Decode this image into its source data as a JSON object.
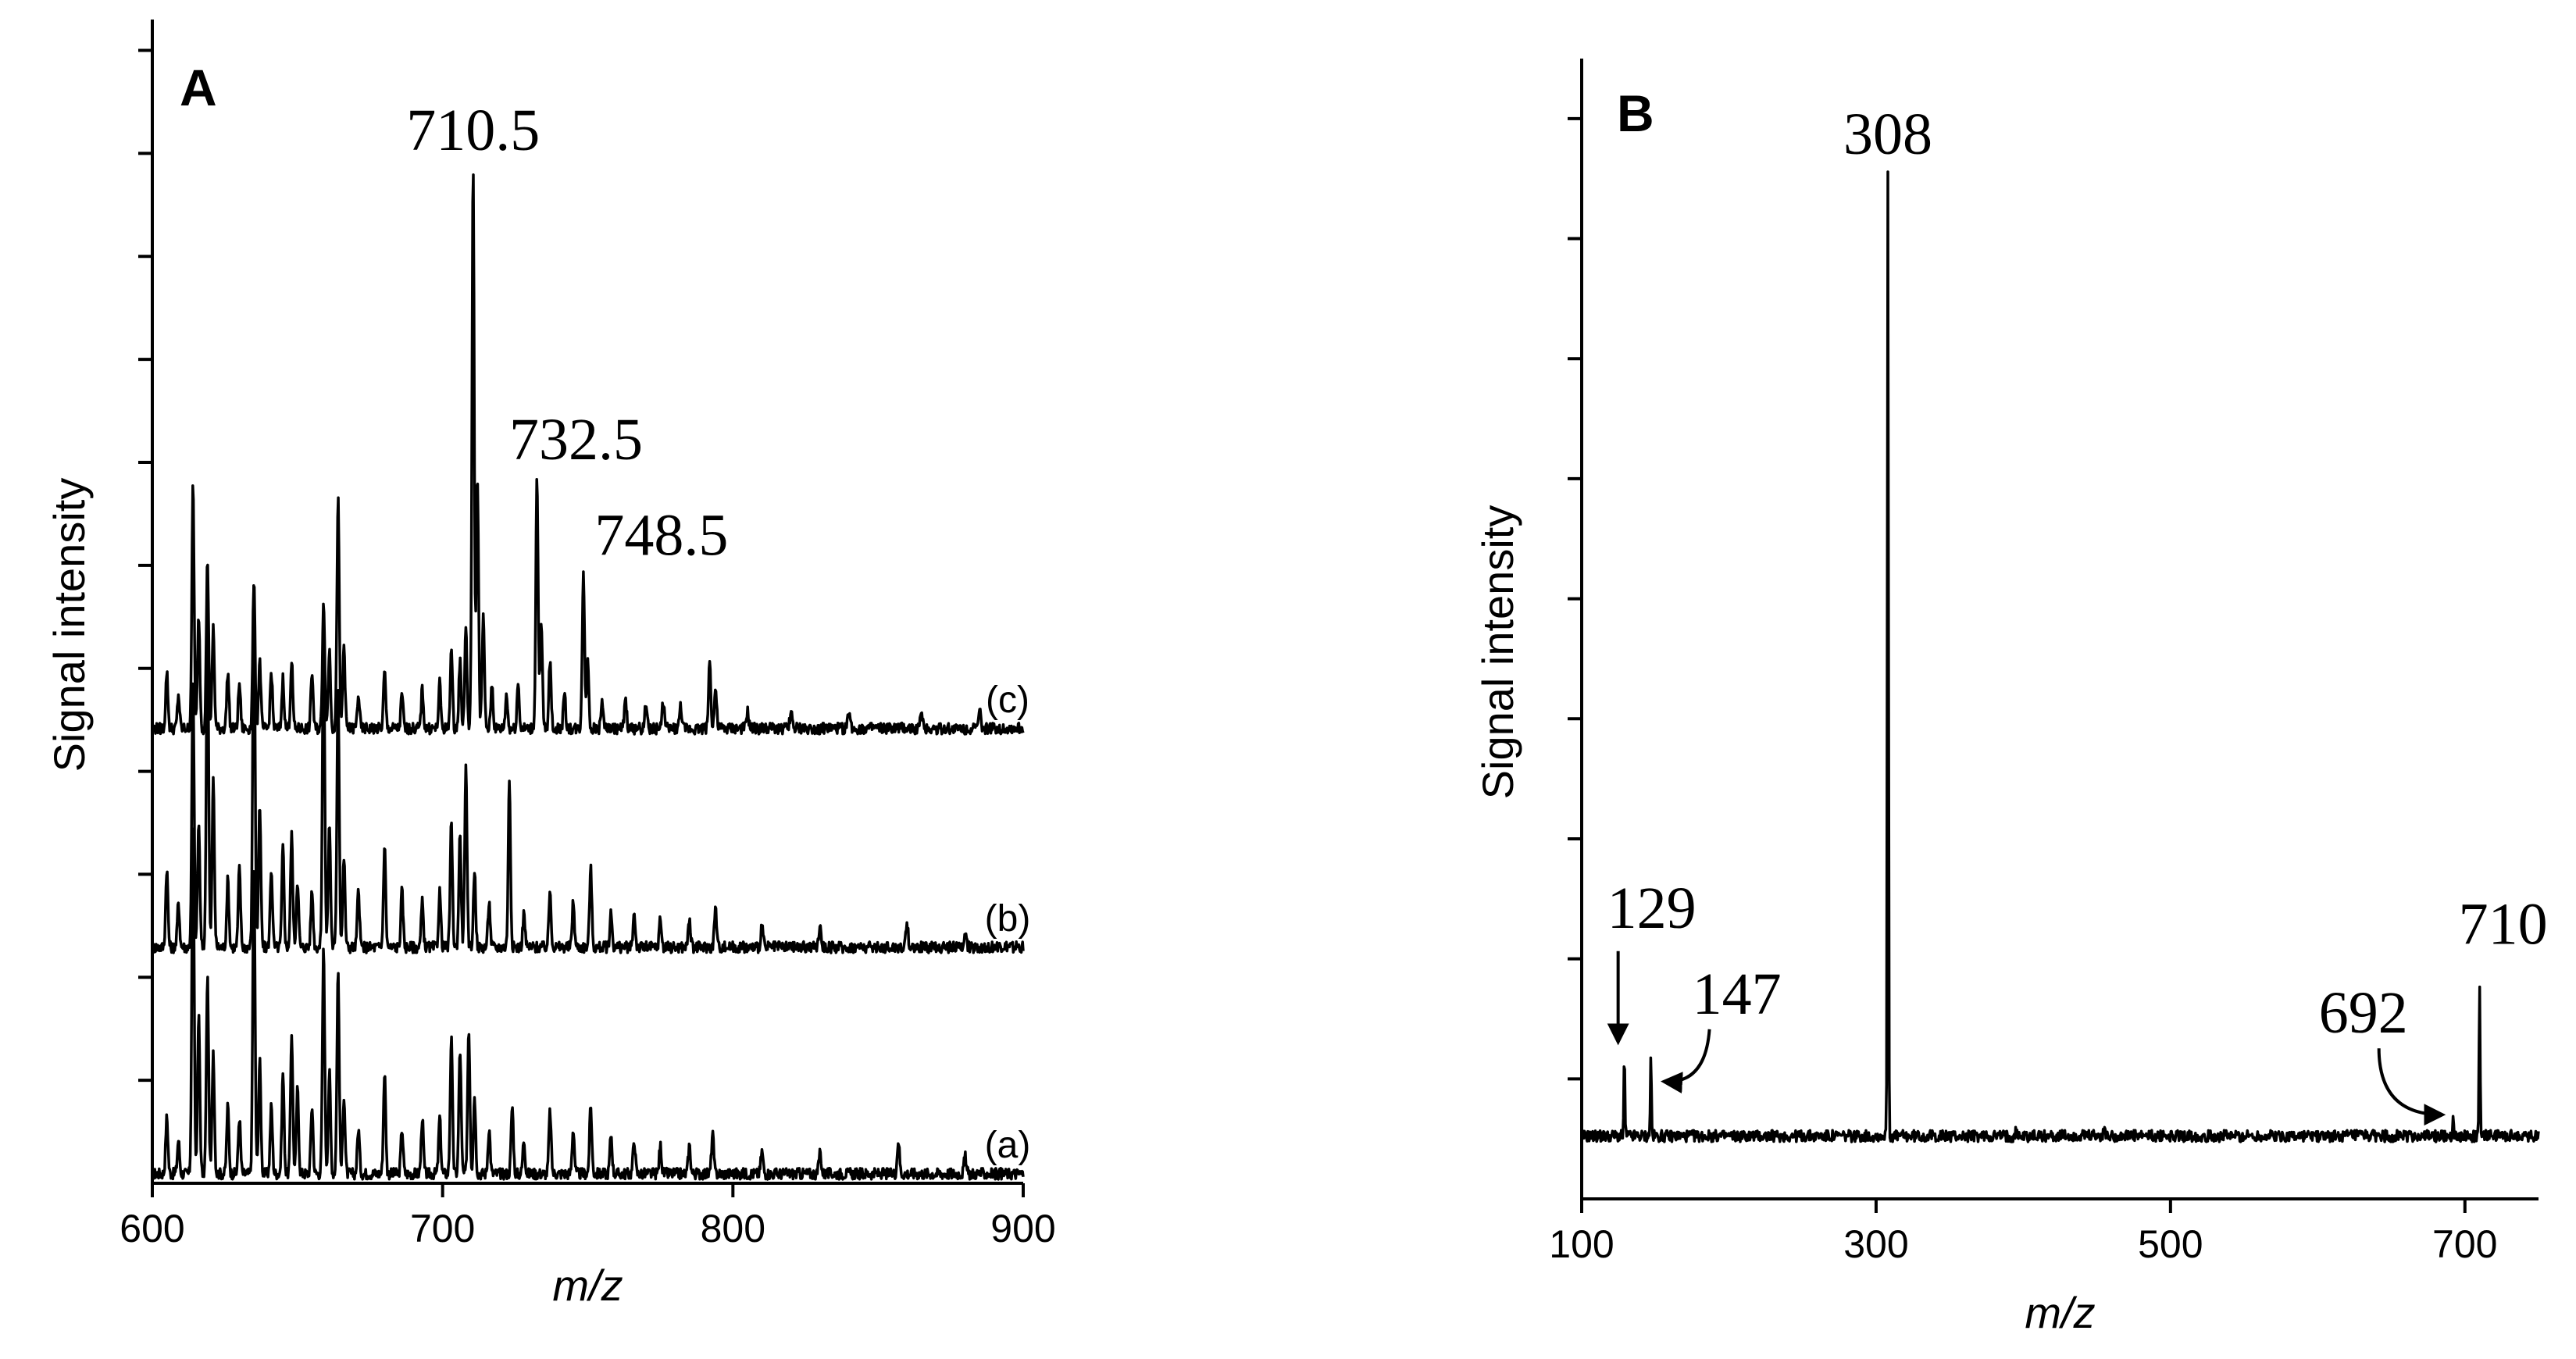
{
  "chart_data": [
    {
      "type": "line",
      "panel_label": "A",
      "xlabel": "m/z",
      "ylabel": "Signal intensity",
      "xlim": [
        600,
        900
      ],
      "x_ticks": [
        "600",
        "700",
        "800",
        "900"
      ],
      "y_ticks_count": 11,
      "grid": false,
      "series": [
        {
          "name": "(a)",
          "peaks": [
            {
              "mz": 605,
              "h": 0.1
            },
            {
              "mz": 609,
              "h": 0.06
            },
            {
              "mz": 614,
              "h": 0.62
            },
            {
              "mz": 616,
              "h": 0.28
            },
            {
              "mz": 619,
              "h": 0.35
            },
            {
              "mz": 621,
              "h": 0.22
            },
            {
              "mz": 626,
              "h": 0.12
            },
            {
              "mz": 630,
              "h": 0.1
            },
            {
              "mz": 635,
              "h": 0.55
            },
            {
              "mz": 637,
              "h": 0.2
            },
            {
              "mz": 641,
              "h": 0.12
            },
            {
              "mz": 645,
              "h": 0.18
            },
            {
              "mz": 648,
              "h": 0.25
            },
            {
              "mz": 650,
              "h": 0.15
            },
            {
              "mz": 655,
              "h": 0.12
            },
            {
              "mz": 659,
              "h": 0.4
            },
            {
              "mz": 661,
              "h": 0.18
            },
            {
              "mz": 664,
              "h": 0.36
            },
            {
              "mz": 666,
              "h": 0.14
            },
            {
              "mz": 671,
              "h": 0.08
            },
            {
              "mz": 680,
              "h": 0.18
            },
            {
              "mz": 686,
              "h": 0.08
            },
            {
              "mz": 693,
              "h": 0.1
            },
            {
              "mz": 699,
              "h": 0.1
            },
            {
              "mz": 703,
              "h": 0.24
            },
            {
              "mz": 706,
              "h": 0.22
            },
            {
              "mz": 709,
              "h": 0.26
            },
            {
              "mz": 711,
              "h": 0.14
            },
            {
              "mz": 716,
              "h": 0.08
            },
            {
              "mz": 724,
              "h": 0.12
            },
            {
              "mz": 728,
              "h": 0.06
            },
            {
              "mz": 737,
              "h": 0.11
            },
            {
              "mz": 745,
              "h": 0.08
            },
            {
              "mz": 751,
              "h": 0.12
            },
            {
              "mz": 758,
              "h": 0.07
            },
            {
              "mz": 766,
              "h": 0.06
            },
            {
              "mz": 775,
              "h": 0.05
            },
            {
              "mz": 785,
              "h": 0.05
            },
            {
              "mz": 793,
              "h": 0.07
            },
            {
              "mz": 810,
              "h": 0.04
            },
            {
              "mz": 830,
              "h": 0.04
            },
            {
              "mz": 857,
              "h": 0.06
            },
            {
              "mz": 880,
              "h": 0.03
            }
          ]
        },
        {
          "name": "(b)",
          "peaks": [
            {
              "mz": 605,
              "h": 0.14
            },
            {
              "mz": 609,
              "h": 0.08
            },
            {
              "mz": 614,
              "h": 0.47
            },
            {
              "mz": 616,
              "h": 0.22
            },
            {
              "mz": 619,
              "h": 0.6
            },
            {
              "mz": 621,
              "h": 0.3
            },
            {
              "mz": 626,
              "h": 0.12
            },
            {
              "mz": 630,
              "h": 0.14
            },
            {
              "mz": 635,
              "h": 0.66
            },
            {
              "mz": 637,
              "h": 0.25
            },
            {
              "mz": 641,
              "h": 0.14
            },
            {
              "mz": 645,
              "h": 0.18
            },
            {
              "mz": 648,
              "h": 0.2
            },
            {
              "mz": 650,
              "h": 0.12
            },
            {
              "mz": 655,
              "h": 0.1
            },
            {
              "mz": 659,
              "h": 0.57
            },
            {
              "mz": 661,
              "h": 0.22
            },
            {
              "mz": 664,
              "h": 0.47
            },
            {
              "mz": 666,
              "h": 0.16
            },
            {
              "mz": 671,
              "h": 0.1
            },
            {
              "mz": 680,
              "h": 0.18
            },
            {
              "mz": 686,
              "h": 0.1
            },
            {
              "mz": 693,
              "h": 0.08
            },
            {
              "mz": 699,
              "h": 0.1
            },
            {
              "mz": 703,
              "h": 0.22
            },
            {
              "mz": 706,
              "h": 0.2
            },
            {
              "mz": 708,
              "h": 0.32
            },
            {
              "mz": 711,
              "h": 0.14
            },
            {
              "mz": 716,
              "h": 0.08
            },
            {
              "mz": 723,
              "h": 0.3
            },
            {
              "mz": 728,
              "h": 0.06
            },
            {
              "mz": 737,
              "h": 0.1
            },
            {
              "mz": 745,
              "h": 0.08
            },
            {
              "mz": 751,
              "h": 0.14
            },
            {
              "mz": 758,
              "h": 0.06
            },
            {
              "mz": 766,
              "h": 0.06
            },
            {
              "mz": 775,
              "h": 0.05
            },
            {
              "mz": 785,
              "h": 0.05
            },
            {
              "mz": 794,
              "h": 0.07
            },
            {
              "mz": 810,
              "h": 0.04
            },
            {
              "mz": 830,
              "h": 0.04
            },
            {
              "mz": 860,
              "h": 0.04
            },
            {
              "mz": 880,
              "h": 0.03
            }
          ]
        },
        {
          "name": "(c)",
          "peaks": [
            {
              "mz": 605,
              "h": 0.1
            },
            {
              "mz": 609,
              "h": 0.06
            },
            {
              "mz": 614,
              "h": 0.43
            },
            {
              "mz": 616,
              "h": 0.2
            },
            {
              "mz": 619,
              "h": 0.3
            },
            {
              "mz": 621,
              "h": 0.18
            },
            {
              "mz": 626,
              "h": 0.1
            },
            {
              "mz": 630,
              "h": 0.08
            },
            {
              "mz": 635,
              "h": 0.26
            },
            {
              "mz": 637,
              "h": 0.12
            },
            {
              "mz": 641,
              "h": 0.1
            },
            {
              "mz": 645,
              "h": 0.09
            },
            {
              "mz": 648,
              "h": 0.12
            },
            {
              "mz": 655,
              "h": 0.1
            },
            {
              "mz": 659,
              "h": 0.23
            },
            {
              "mz": 661,
              "h": 0.14
            },
            {
              "mz": 664,
              "h": 0.41
            },
            {
              "mz": 666,
              "h": 0.15
            },
            {
              "mz": 671,
              "h": 0.06
            },
            {
              "mz": 680,
              "h": 0.1
            },
            {
              "mz": 686,
              "h": 0.06
            },
            {
              "mz": 693,
              "h": 0.07
            },
            {
              "mz": 699,
              "h": 0.08
            },
            {
              "mz": 703,
              "h": 0.14
            },
            {
              "mz": 706,
              "h": 0.12
            },
            {
              "mz": 708,
              "h": 0.18
            },
            {
              "mz": 710.5,
              "h": 1.0
            },
            {
              "mz": 712,
              "h": 0.45
            },
            {
              "mz": 714,
              "h": 0.2
            },
            {
              "mz": 717,
              "h": 0.08
            },
            {
              "mz": 722,
              "h": 0.06
            },
            {
              "mz": 726,
              "h": 0.08
            },
            {
              "mz": 732.5,
              "h": 0.45
            },
            {
              "mz": 734,
              "h": 0.18
            },
            {
              "mz": 737,
              "h": 0.12
            },
            {
              "mz": 742,
              "h": 0.06
            },
            {
              "mz": 748.5,
              "h": 0.28
            },
            {
              "mz": 750,
              "h": 0.12
            },
            {
              "mz": 755,
              "h": 0.05
            },
            {
              "mz": 763,
              "h": 0.05
            },
            {
              "mz": 770,
              "h": 0.04
            },
            {
              "mz": 776,
              "h": 0.05
            },
            {
              "mz": 782,
              "h": 0.04
            },
            {
              "mz": 792,
              "h": 0.12
            },
            {
              "mz": 794,
              "h": 0.07
            },
            {
              "mz": 805,
              "h": 0.03
            },
            {
              "mz": 820,
              "h": 0.03
            },
            {
              "mz": 840,
              "h": 0.03
            },
            {
              "mz": 865,
              "h": 0.03
            },
            {
              "mz": 885,
              "h": 0.03
            }
          ]
        }
      ],
      "annotations": [
        {
          "text": "710.5",
          "mz": 710.5,
          "series": "(c)"
        },
        {
          "text": "732.5",
          "mz": 732.5,
          "series": "(c)"
        },
        {
          "text": "748.5",
          "mz": 748.5,
          "series": "(c)"
        }
      ]
    },
    {
      "type": "line",
      "panel_label": "B",
      "xlabel": "m/z",
      "ylabel": "Signal intensity",
      "xlim": [
        100,
        750
      ],
      "x_ticks": [
        "100",
        "300",
        "500",
        "700"
      ],
      "y_ticks_count": 9,
      "grid": false,
      "peaks": [
        {
          "mz": 129,
          "h": 0.08
        },
        {
          "mz": 147,
          "h": 0.08
        },
        {
          "mz": 308,
          "h": 1.0
        },
        {
          "mz": 395,
          "h": 0.01
        },
        {
          "mz": 455,
          "h": 0.01
        },
        {
          "mz": 692,
          "h": 0.02
        },
        {
          "mz": 710,
          "h": 0.16
        }
      ],
      "annotations": [
        {
          "text": "308",
          "mz": 308
        },
        {
          "text": "129",
          "mz": 129,
          "arrow": "straight-down"
        },
        {
          "text": "147",
          "mz": 147,
          "arrow": "curved-left"
        },
        {
          "text": "692",
          "mz": 692,
          "arrow": "curved-right"
        },
        {
          "text": "710",
          "mz": 710
        }
      ]
    }
  ]
}
